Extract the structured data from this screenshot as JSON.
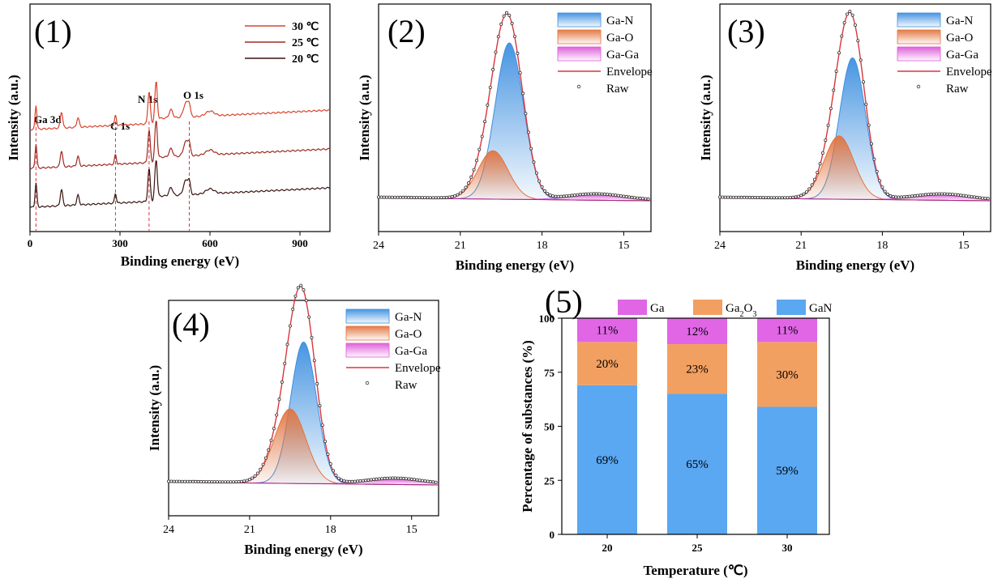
{
  "chart_data": [
    {
      "panel": "(1)",
      "type": "line",
      "xlabel": "Binding energy (eV)",
      "ylabel": "Intensity (a.u.)",
      "xlim": [
        0,
        1000
      ],
      "xticks": [
        0,
        300,
        600,
        900
      ],
      "series": [
        {
          "name": "30 ℃",
          "color": "#d9432e",
          "offset": 2
        },
        {
          "name": "25 ℃",
          "color": "#9e2a22",
          "offset": 1
        },
        {
          "name": "20 ℃",
          "color": "#3a1410",
          "offset": 0
        }
      ],
      "peaks": [
        {
          "label": "Ga 3d",
          "x": 20
        },
        {
          "label": "C 1s",
          "x": 285
        },
        {
          "label": "N 1s",
          "x": 397
        },
        {
          "label": "O 1s",
          "x": 531
        }
      ]
    },
    {
      "panel": "(2)",
      "type": "area",
      "xlabel": "Binding energy (eV)",
      "ylabel": "Intensity (a.u.)",
      "xlim": [
        24,
        14
      ],
      "xticks": [
        24,
        21,
        18,
        15
      ],
      "components": [
        {
          "name": "Ga-N",
          "center": 19.2,
          "width": 0.52,
          "amp": 0.84,
          "color": "#3d8fe0"
        },
        {
          "name": "Ga-O",
          "center": 19.8,
          "width": 0.55,
          "amp": 0.26,
          "color": "#e2743f"
        },
        {
          "name": "Ga-Ga",
          "center": 16.0,
          "width": 1.0,
          "amp": 0.03,
          "color": "#dd5ad8"
        }
      ],
      "legend": [
        "Ga-N",
        "Ga-O",
        "Ga-Ga",
        "Envelope",
        "Raw"
      ]
    },
    {
      "panel": "(3)",
      "type": "area",
      "xlabel": "Binding energy (eV)",
      "ylabel": "Intensity (a.u.)",
      "xlim": [
        24,
        14
      ],
      "xticks": [
        24,
        21,
        18,
        15
      ],
      "components": [
        {
          "name": "Ga-N",
          "center": 19.1,
          "width": 0.48,
          "amp": 0.76,
          "color": "#3d8fe0"
        },
        {
          "name": "Ga-O",
          "center": 19.6,
          "width": 0.55,
          "amp": 0.34,
          "color": "#e2743f"
        },
        {
          "name": "Ga-Ga",
          "center": 15.8,
          "width": 1.0,
          "amp": 0.03,
          "color": "#dd5ad8"
        }
      ],
      "legend": [
        "Ga-N",
        "Ga-O",
        "Ga-Ga",
        "Envelope",
        "Raw"
      ]
    },
    {
      "panel": "(4)",
      "type": "area",
      "xlabel": "Binding energy (eV)",
      "ylabel": "Intensity (a.u.)",
      "xlim": [
        24,
        14
      ],
      "xticks": [
        24,
        21,
        18,
        15
      ],
      "components": [
        {
          "name": "Ga-N",
          "center": 19.0,
          "width": 0.48,
          "amp": 0.76,
          "color": "#3d8fe0"
        },
        {
          "name": "Ga-O",
          "center": 19.5,
          "width": 0.58,
          "amp": 0.4,
          "color": "#e2743f"
        },
        {
          "name": "Ga-Ga",
          "center": 15.6,
          "width": 1.0,
          "amp": 0.03,
          "color": "#dd5ad8"
        }
      ],
      "legend": [
        "Ga-N",
        "Ga-O",
        "Ga-Ga",
        "Envelope",
        "Raw"
      ]
    },
    {
      "panel": "(5)",
      "type": "bar",
      "stacked": true,
      "xlabel": "Temperature (℃)",
      "ylabel": "Percentage of substances (%)",
      "ylim": [
        0,
        100
      ],
      "yticks": [
        0,
        25,
        50,
        75,
        100
      ],
      "categories": [
        "20",
        "25",
        "30"
      ],
      "series": [
        {
          "name": "GaN",
          "values": [
            69,
            65,
            59
          ],
          "labels": [
            "69%",
            "65%",
            "59%"
          ],
          "color": "#5aa7f2"
        },
        {
          "name": "Ga2O3",
          "values": [
            20,
            23,
            30
          ],
          "labels": [
            "20%",
            "23%",
            "30%"
          ],
          "color": "#f2a062"
        },
        {
          "name": "Ga",
          "values": [
            11,
            12,
            11
          ],
          "labels": [
            "11%",
            "12%",
            "11%"
          ],
          "color": "#e066e6"
        }
      ],
      "legend_order": [
        "Ga",
        "Ga2O3",
        "GaN"
      ]
    }
  ],
  "legend_styles": {
    "envelope_color": "#d9363e",
    "raw_color": "#333333"
  }
}
